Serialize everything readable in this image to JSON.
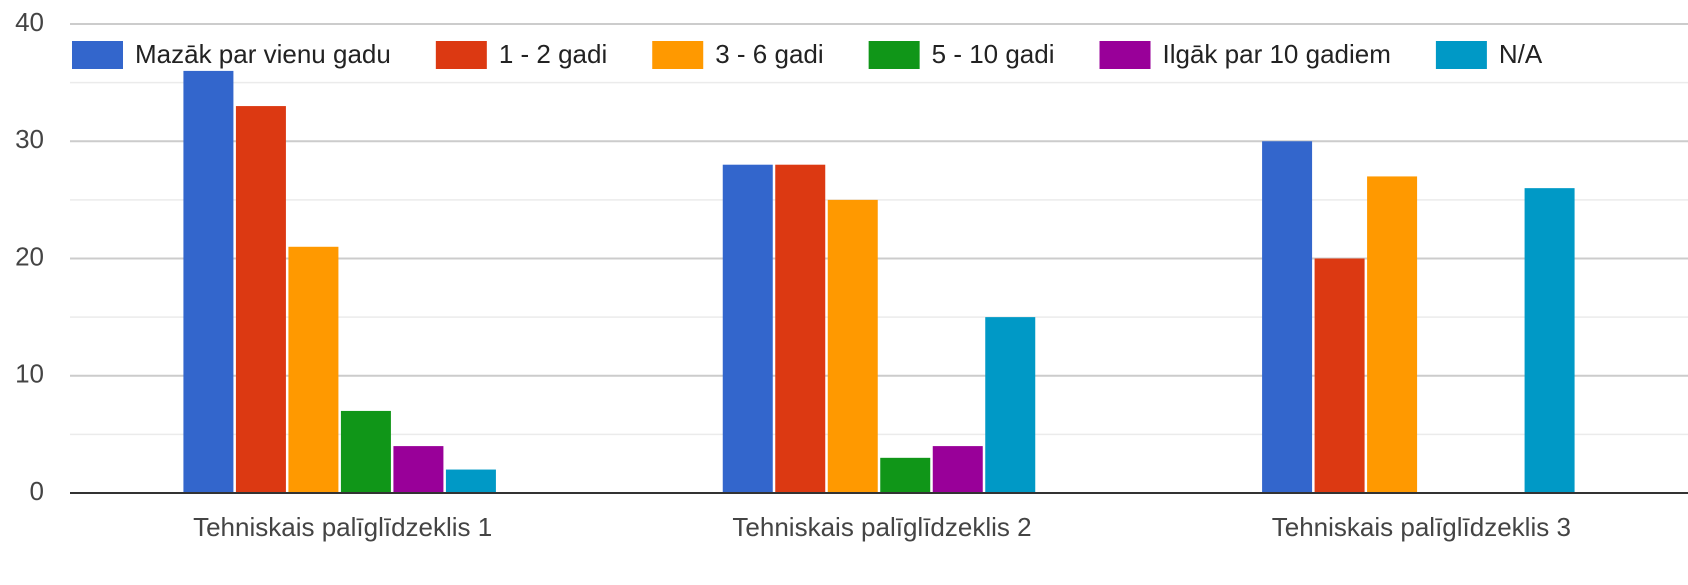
{
  "chart_data": {
    "type": "bar",
    "categories": [
      "Tehniskais palīglīdzeklis 1",
      "Tehniskais palīglīdzeklis 2",
      "Tehniskais palīglīdzeklis 3"
    ],
    "series": [
      {
        "name": "Mazāk par vienu gadu",
        "color": "#3366cc",
        "values": [
          36,
          28,
          30
        ]
      },
      {
        "name": "1 - 2 gadi",
        "color": "#dc3912",
        "values": [
          33,
          28,
          20
        ]
      },
      {
        "name": "3 - 6 gadi",
        "color": "#ff9900",
        "values": [
          21,
          25,
          27
        ]
      },
      {
        "name": "5 - 10 gadi",
        "color": "#109618",
        "values": [
          7,
          3,
          0
        ]
      },
      {
        "name": "Ilgāk par 10 gadiem",
        "color": "#990099",
        "values": [
          4,
          4,
          0
        ]
      },
      {
        "name": "N/A",
        "color": "#0099c6",
        "values": [
          2,
          15,
          26
        ]
      }
    ],
    "ylim": [
      0,
      40
    ],
    "yticks": [
      0,
      10,
      20,
      30,
      40
    ],
    "grid": true,
    "legend": "top"
  }
}
